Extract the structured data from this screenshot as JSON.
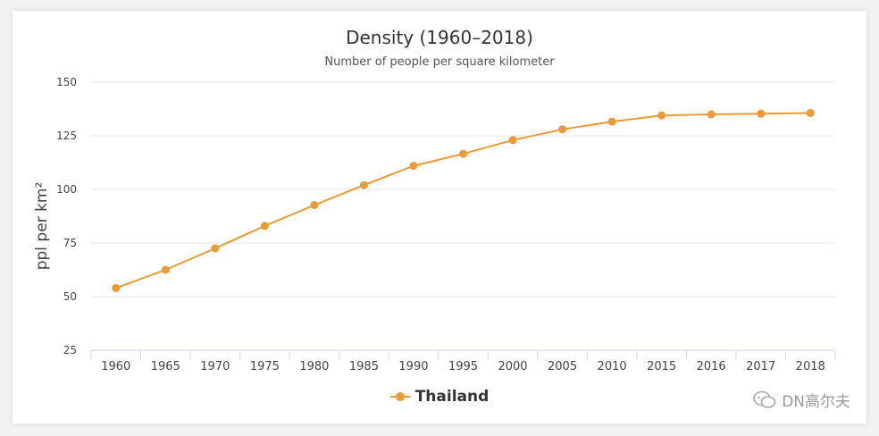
{
  "colors": {
    "series": "#eb9a35",
    "grid": "#e6e6e6",
    "axis": "#ccd6eb",
    "text": "#444444"
  },
  "watermark": {
    "icon": "wechat-icon",
    "text": "DN高尔夫"
  },
  "chart_data": {
    "type": "line",
    "title": "Density (1960–2018)",
    "subtitle": "Number of people per square kilometer",
    "ylabel": "ppl per km²",
    "xlabel": "",
    "ylim": [
      25,
      150
    ],
    "yticks": [
      25,
      50,
      75,
      100,
      125,
      150
    ],
    "grid": true,
    "legend_position": "bottom-center",
    "categories": [
      "1960",
      "1965",
      "1970",
      "1975",
      "1980",
      "1985",
      "1990",
      "1995",
      "2000",
      "2005",
      "2010",
      "2015",
      "2016",
      "2017",
      "2018"
    ],
    "series": [
      {
        "name": "Thailand",
        "values": [
          54,
          62.5,
          72.5,
          83,
          92.7,
          102,
          111,
          116.6,
          123,
          128,
          131.6,
          134.5,
          135,
          135.3,
          135.6
        ]
      }
    ]
  }
}
